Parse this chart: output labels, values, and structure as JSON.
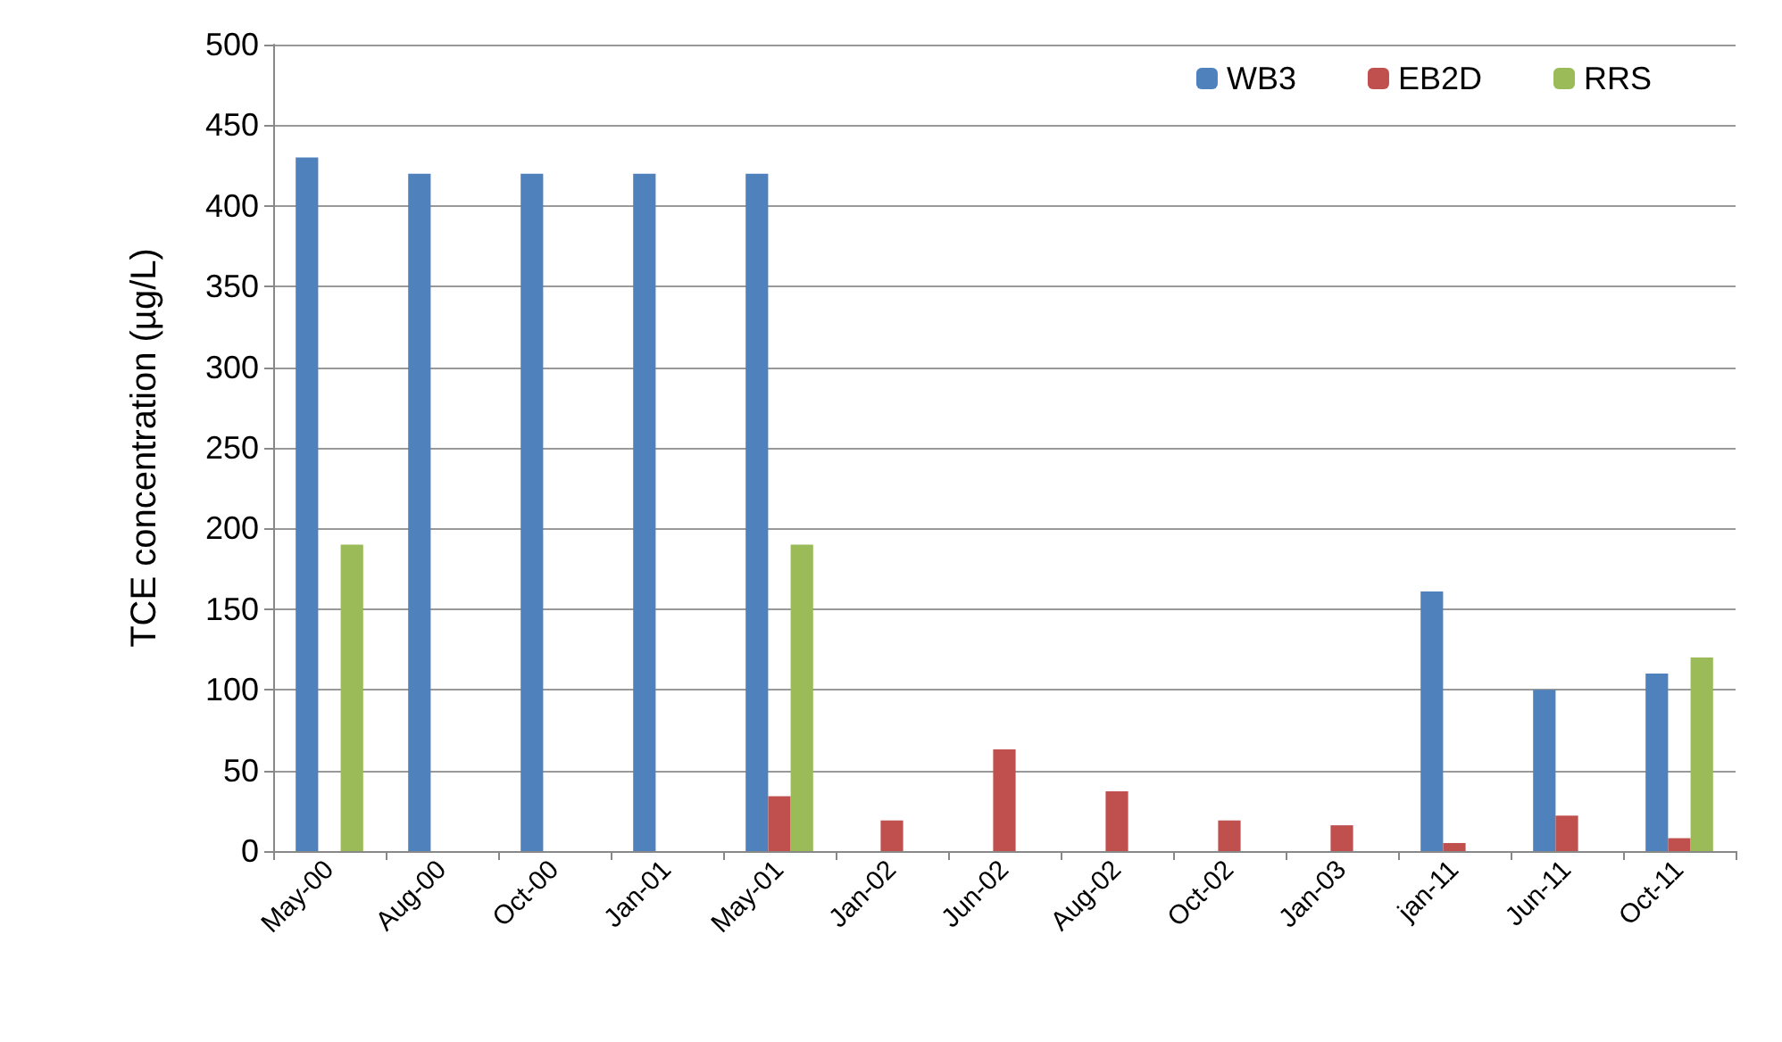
{
  "chart_data": {
    "type": "bar",
    "ylabel": "TCE concentration (µg/L)",
    "categories": [
      "May-00",
      "Aug-00",
      "Oct-00",
      "Jan-01",
      "May-01",
      "Jan-02",
      "Jun-02",
      "Aug-02",
      "Oct-02",
      "Jan-03",
      "jan-11",
      "Jun-11",
      "Oct-11"
    ],
    "series": [
      {
        "name": "WB3",
        "color": "#4f81bd",
        "values": [
          430,
          420,
          420,
          420,
          420,
          null,
          null,
          null,
          null,
          null,
          161,
          100,
          110
        ]
      },
      {
        "name": "EB2D",
        "color": "#c0504d",
        "values": [
          null,
          null,
          null,
          null,
          34,
          19,
          63,
          37,
          19,
          16,
          5,
          22,
          8
        ]
      },
      {
        "name": "RRS",
        "color": "#9bbb59",
        "values": [
          190,
          null,
          null,
          null,
          190,
          null,
          null,
          null,
          null,
          null,
          null,
          null,
          120
        ]
      }
    ],
    "ylim": [
      0,
      500
    ],
    "yticks": [
      0,
      50,
      100,
      150,
      200,
      250,
      300,
      350,
      400,
      450,
      500
    ],
    "grid": "y",
    "legend": "top right"
  }
}
